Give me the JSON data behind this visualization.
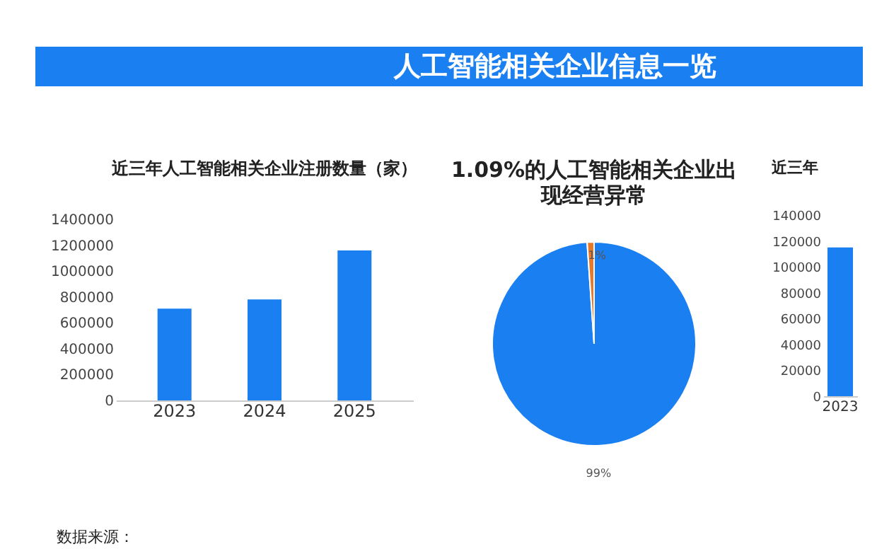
{
  "chart_data": [
    {
      "type": "bar",
      "title": "近三年人工智能相关企业注册数量（家）",
      "annotations": [
        "人工智能相关企业信息一览",
        "数据来源："
      ],
      "categories": [
        "2023",
        "2024",
        "2025"
      ],
      "values": [
        710000,
        780000,
        1160000
      ],
      "color": "#1a7ff0",
      "ylim": [
        0,
        1400000
      ],
      "yticks": [
        0,
        200000,
        400000,
        600000,
        800000,
        1000000,
        1200000,
        1400000
      ]
    },
    {
      "type": "pie",
      "title": "1.09%的人工智能相关企业出现经营异常",
      "categories": [
        null,
        null
      ],
      "values": [
        98.91,
        1.09
      ],
      "colors": [
        "#1a7ff0",
        "#e8792b"
      ],
      "value_labels": [
        "99%",
        "1%"
      ]
    },
    {
      "type": "bar",
      "title": "近三年",
      "categories": [
        "2023"
      ],
      "values": [
        115000
      ],
      "color": "#1a7ff0",
      "ylim": [
        0,
        140000
      ],
      "yticks": [
        0,
        20000,
        40000,
        60000,
        80000,
        100000,
        120000,
        140000
      ]
    }
  ]
}
